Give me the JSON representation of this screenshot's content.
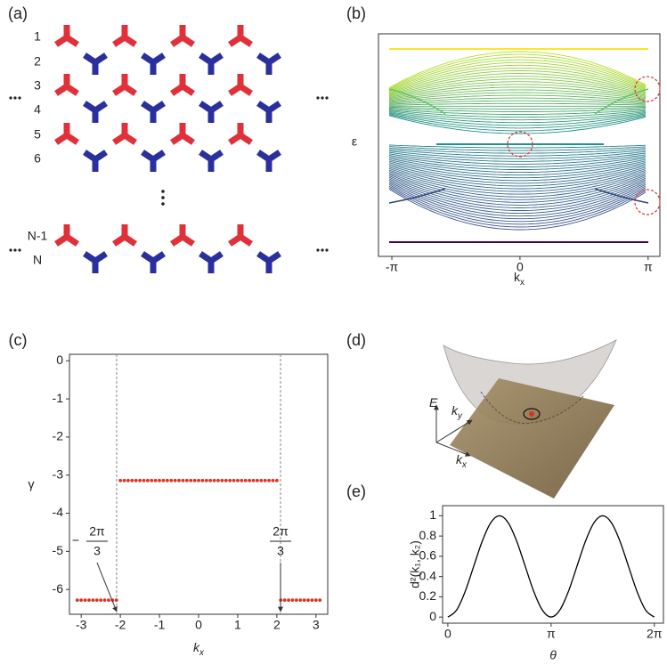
{
  "panel_labels": [
    "(a)",
    "(b)",
    "(c)",
    "(d)",
    "(e)"
  ],
  "lattice": {
    "row_labels": [
      "1",
      "2",
      "3",
      "4",
      "5",
      "6",
      "N-1",
      "N"
    ]
  },
  "illustration": {
    "axis_labels": [
      {
        "text": "E"
      },
      {
        "text": "k",
        "sub": "y"
      },
      {
        "text": "k",
        "sub": "x"
      }
    ]
  },
  "chart_data": [
    {
      "type": "band",
      "xlabel": {
        "text": "k",
        "sub": "x"
      },
      "ylabel": "ε",
      "xlim": [
        -3.47,
        3.43
      ],
      "xticks": [
        {
          "value": -3.1416,
          "label": "-π"
        },
        0,
        {
          "value": 3.1416,
          "label": "π"
        }
      ]
    },
    {
      "type": "scatter",
      "xlabel": {
        "text": "k",
        "sub": "x"
      },
      "ylabel": "γ",
      "color": "#e0301e",
      "xlim": [
        -3.3,
        3.3
      ],
      "ylim": [
        -6.65,
        0.17
      ],
      "xticks": [
        -3,
        -2,
        -1,
        0,
        1,
        2,
        3
      ],
      "yticks": [
        0,
        -1,
        -2,
        -3,
        -4,
        -5,
        -6
      ],
      "vlines": [
        -2.0944,
        2.0944
      ],
      "annotations": [
        {
          "sign": "−",
          "num": "2π",
          "den": "3"
        },
        {
          "num": "2π",
          "den": "3"
        }
      ],
      "x": [
        -3.1,
        -3,
        -2.9,
        -2.8,
        -2.7,
        -2.6,
        -2.5,
        -2.4,
        -2.3,
        -2.2,
        -2.1,
        -2,
        -1.9,
        -1.8,
        -1.7,
        -1.6,
        -1.5,
        -1.4,
        -1.3,
        -1.2,
        -1.1,
        -1,
        -0.9,
        -0.8,
        -0.7,
        -0.6,
        -0.5,
        -0.4,
        -0.3,
        -0.2,
        -0.1,
        0,
        0.1,
        0.2,
        0.3,
        0.4,
        0.5,
        0.6,
        0.7,
        0.8,
        0.9,
        1,
        1.1,
        1.2,
        1.3,
        1.4,
        1.5,
        1.6,
        1.7,
        1.8,
        1.9,
        2,
        2.1,
        2.2,
        2.3,
        2.4,
        2.5,
        2.6,
        2.7,
        2.8,
        2.9,
        3,
        3.1
      ],
      "values": [
        -6.28,
        -6.28,
        -6.28,
        -6.28,
        -6.28,
        -6.28,
        -6.28,
        -6.28,
        -6.28,
        -6.28,
        -6.28,
        -3.14,
        -3.14,
        -3.14,
        -3.14,
        -3.14,
        -3.14,
        -3.14,
        -3.14,
        -3.14,
        -3.14,
        -3.14,
        -3.14,
        -3.14,
        -3.14,
        -3.14,
        -3.14,
        -3.14,
        -3.14,
        -3.14,
        -3.14,
        -3.14,
        -3.14,
        -3.14,
        -3.14,
        -3.14,
        -3.14,
        -3.14,
        -3.14,
        -3.14,
        -3.14,
        -3.14,
        -3.14,
        -3.14,
        -3.14,
        -3.14,
        -3.14,
        -3.14,
        -3.14,
        -3.14,
        -3.14,
        -3.14,
        -6.28,
        -6.28,
        -6.28,
        -6.28,
        -6.28,
        -6.28,
        -6.28,
        -6.28,
        -6.28,
        -6.28,
        -6.28
      ]
    },
    {
      "type": "line",
      "xlabel": "θ",
      "ylabel": "d²(k₁, k₂)",
      "color": "#000000",
      "xlim": [
        -0.16,
        6.56
      ],
      "ylim": [
        -0.06,
        1.1
      ],
      "xticks": [
        0,
        {
          "value": 3.1416,
          "label": "π"
        },
        {
          "value": 6.2832,
          "label": "2π"
        }
      ],
      "yticks": [
        0,
        0.2,
        0.4,
        0.6,
        0.8,
        1
      ],
      "x": [
        0,
        0.2618,
        0.5236,
        0.7854,
        1.0472,
        1.309,
        1.5708,
        1.8326,
        2.0944,
        2.3562,
        2.618,
        2.8798,
        3.1416,
        3.4034,
        3.6652,
        3.927,
        4.1888,
        4.4506,
        4.7124,
        4.9742,
        5.236,
        5.4978,
        5.7596,
        6.0214,
        6.2832
      ],
      "values": [
        0,
        0.067,
        0.25,
        0.5,
        0.75,
        0.933,
        1,
        0.933,
        0.75,
        0.5,
        0.25,
        0.067,
        0,
        0.067,
        0.25,
        0.5,
        0.75,
        0.933,
        1,
        0.933,
        0.75,
        0.5,
        0.25,
        0.067,
        0
      ]
    }
  ]
}
